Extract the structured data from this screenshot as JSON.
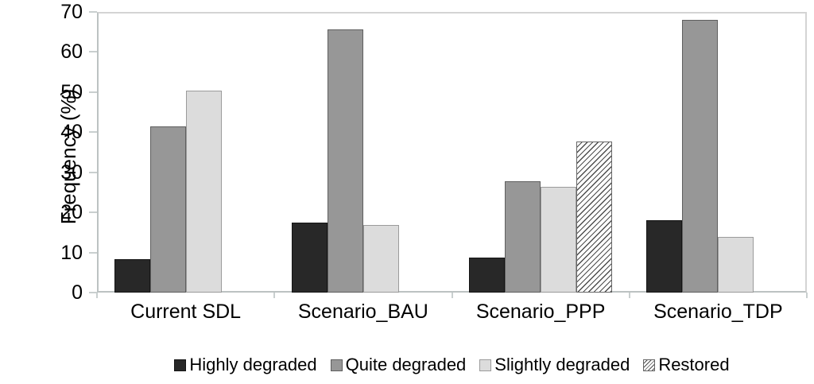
{
  "chart_data": {
    "type": "bar",
    "title": "",
    "xlabel": "",
    "ylabel": "Frequency (%)",
    "ylim": [
      0,
      70
    ],
    "yticks": [
      0,
      10,
      20,
      30,
      40,
      50,
      60,
      70
    ],
    "grid": false,
    "legend_position": "bottom",
    "axis_color": "#c9cfcf",
    "categories": [
      "Current SDL",
      "Scenario_BAU",
      "Scenario_PPP",
      "Scenario_TDP"
    ],
    "series": [
      {
        "name": "Highly degraded",
        "color": "#282828",
        "border_color": "#141414",
        "hatch": false,
        "values": [
          8.4,
          17.5,
          8.7,
          18.1
        ]
      },
      {
        "name": "Quite degraded",
        "color": "#979797",
        "border_color": "#5f5f5f",
        "hatch": false,
        "values": [
          41.4,
          65.7,
          27.7,
          68.1
        ]
      },
      {
        "name": "Slightly degraded",
        "color": "#dcdcdc",
        "border_color": "#9b9b9b",
        "hatch": false,
        "values": [
          50.4,
          16.9,
          26.3,
          13.8
        ]
      },
      {
        "name": "Restored",
        "color": "#ffffff",
        "border_color": "#666666",
        "hatch": true,
        "hatch_line_color": "#4d4d4d",
        "values": [
          0,
          0,
          37.6,
          0
        ]
      }
    ]
  }
}
